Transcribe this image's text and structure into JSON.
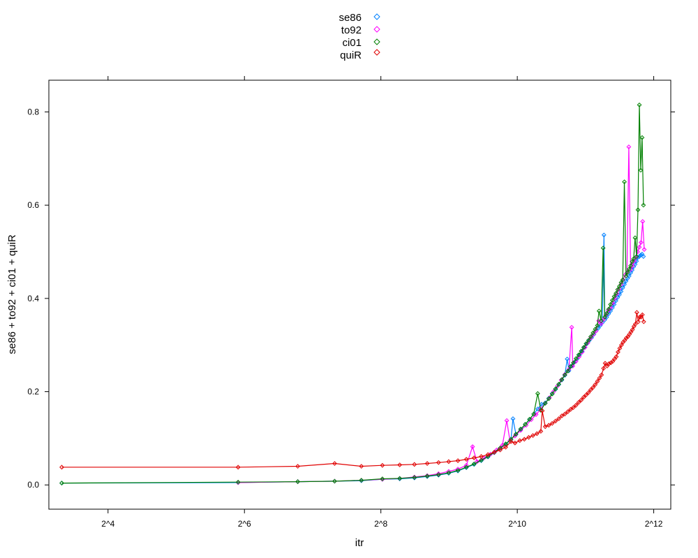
{
  "chart_data": {
    "type": "line",
    "xlabel": "itr",
    "ylabel": "se86 + to92 + ci01 + quiR",
    "x_scale": "log2",
    "xlim": [
      8.77,
      4871.0
    ],
    "ylim": [
      -0.052,
      0.868
    ],
    "x_ticks": [
      {
        "value": 16,
        "label": "2^4"
      },
      {
        "value": 64,
        "label": "2^6"
      },
      {
        "value": 256,
        "label": "2^8"
      },
      {
        "value": 1024,
        "label": "2^10"
      },
      {
        "value": 4096,
        "label": "2^12"
      }
    ],
    "y_ticks": [
      {
        "value": 0.0,
        "label": "0.0"
      },
      {
        "value": 0.2,
        "label": "0.2"
      },
      {
        "value": 0.4,
        "label": "0.4"
      },
      {
        "value": 0.6,
        "label": "0.6"
      },
      {
        "value": 0.8,
        "label": "0.8"
      }
    ],
    "legend_position": "top-center",
    "series": [
      {
        "name": "se86",
        "color": "#0080ff",
        "points": [
          [
            10,
            0.004
          ],
          [
            60,
            0.005
          ],
          [
            110,
            0.007
          ],
          [
            160,
            0.008
          ],
          [
            210,
            0.009
          ],
          [
            260,
            0.012
          ],
          [
            310,
            0.013
          ],
          [
            360,
            0.015
          ],
          [
            410,
            0.018
          ],
          [
            460,
            0.021
          ],
          [
            510,
            0.025
          ],
          [
            560,
            0.03
          ],
          [
            610,
            0.037
          ],
          [
            660,
            0.044
          ],
          [
            710,
            0.052
          ],
          [
            760,
            0.06
          ],
          [
            810,
            0.069
          ],
          [
            860,
            0.078
          ],
          [
            910,
            0.087
          ],
          [
            960,
            0.097
          ],
          [
            980,
            0.142
          ],
          [
            1010,
            0.108
          ],
          [
            1060,
            0.119
          ],
          [
            1110,
            0.13
          ],
          [
            1160,
            0.14
          ],
          [
            1210,
            0.152
          ],
          [
            1260,
            0.163
          ],
          [
            1310,
            0.173
          ],
          [
            1360,
            0.176
          ],
          [
            1410,
            0.186
          ],
          [
            1460,
            0.196
          ],
          [
            1510,
            0.205
          ],
          [
            1560,
            0.215
          ],
          [
            1610,
            0.225
          ],
          [
            1660,
            0.235
          ],
          [
            1700,
            0.27
          ],
          [
            1730,
            0.245
          ],
          [
            1780,
            0.255
          ],
          [
            1830,
            0.263
          ],
          [
            1880,
            0.27
          ],
          [
            1930,
            0.279
          ],
          [
            1980,
            0.287
          ],
          [
            2030,
            0.295
          ],
          [
            2080,
            0.303
          ],
          [
            2130,
            0.31
          ],
          [
            2180,
            0.316
          ],
          [
            2230,
            0.323
          ],
          [
            2280,
            0.33
          ],
          [
            2330,
            0.336
          ],
          [
            2380,
            0.342
          ],
          [
            2430,
            0.348
          ],
          [
            2470,
            0.536
          ],
          [
            2490,
            0.354
          ],
          [
            2540,
            0.36
          ],
          [
            2590,
            0.367
          ],
          [
            2640,
            0.373
          ],
          [
            2690,
            0.38
          ],
          [
            2740,
            0.387
          ],
          [
            2790,
            0.395
          ],
          [
            2840,
            0.402
          ],
          [
            2890,
            0.408
          ],
          [
            2940,
            0.415
          ],
          [
            2990,
            0.423
          ],
          [
            3040,
            0.43
          ],
          [
            3090,
            0.437
          ],
          [
            3140,
            0.443
          ],
          [
            3190,
            0.448
          ],
          [
            3240,
            0.455
          ],
          [
            3290,
            0.461
          ],
          [
            3340,
            0.468
          ],
          [
            3390,
            0.473
          ],
          [
            3440,
            0.48
          ],
          [
            3490,
            0.488
          ],
          [
            3540,
            0.49
          ],
          [
            3590,
            0.493
          ],
          [
            3640,
            0.495
          ],
          [
            3690,
            0.49
          ]
        ]
      },
      {
        "name": "to92",
        "color": "#ff00ff",
        "points": [
          [
            60,
            0.005
          ],
          [
            110,
            0.007
          ],
          [
            160,
            0.008
          ],
          [
            210,
            0.01
          ],
          [
            260,
            0.012
          ],
          [
            310,
            0.014
          ],
          [
            360,
            0.017
          ],
          [
            410,
            0.02
          ],
          [
            460,
            0.024
          ],
          [
            510,
            0.029
          ],
          [
            560,
            0.034
          ],
          [
            610,
            0.042
          ],
          [
            650,
            0.082
          ],
          [
            680,
            0.05
          ],
          [
            730,
            0.058
          ],
          [
            780,
            0.066
          ],
          [
            830,
            0.075
          ],
          [
            880,
            0.085
          ],
          [
            920,
            0.138
          ],
          [
            950,
            0.095
          ],
          [
            1000,
            0.105
          ],
          [
            1060,
            0.117
          ],
          [
            1120,
            0.128
          ],
          [
            1180,
            0.14
          ],
          [
            1240,
            0.151
          ],
          [
            1300,
            0.163
          ],
          [
            1360,
            0.175
          ],
          [
            1420,
            0.187
          ],
          [
            1480,
            0.2
          ],
          [
            1540,
            0.212
          ],
          [
            1600,
            0.225
          ],
          [
            1660,
            0.237
          ],
          [
            1730,
            0.248
          ],
          [
            1780,
            0.338
          ],
          [
            1800,
            0.255
          ],
          [
            1860,
            0.265
          ],
          [
            1920,
            0.275
          ],
          [
            1980,
            0.285
          ],
          [
            2040,
            0.295
          ],
          [
            2100,
            0.305
          ],
          [
            2160,
            0.315
          ],
          [
            2220,
            0.323
          ],
          [
            2280,
            0.33
          ],
          [
            2340,
            0.352
          ],
          [
            2400,
            0.346
          ],
          [
            2460,
            0.355
          ],
          [
            2520,
            0.365
          ],
          [
            2580,
            0.374
          ],
          [
            2640,
            0.38
          ],
          [
            2700,
            0.39
          ],
          [
            2760,
            0.4
          ],
          [
            2820,
            0.41
          ],
          [
            2880,
            0.42
          ],
          [
            2940,
            0.43
          ],
          [
            3000,
            0.44
          ],
          [
            3060,
            0.45
          ],
          [
            3120,
            0.455
          ],
          [
            3180,
            0.725
          ],
          [
            3240,
            0.462
          ],
          [
            3300,
            0.47
          ],
          [
            3360,
            0.48
          ],
          [
            3420,
            0.488
          ],
          [
            3480,
            0.5
          ],
          [
            3540,
            0.51
          ],
          [
            3600,
            0.52
          ],
          [
            3660,
            0.565
          ],
          [
            3720,
            0.505
          ]
        ]
      },
      {
        "name": "ci01",
        "color": "#008000",
        "points": [
          [
            10,
            0.004
          ],
          [
            60,
            0.006
          ],
          [
            110,
            0.007
          ],
          [
            160,
            0.008
          ],
          [
            210,
            0.01
          ],
          [
            260,
            0.013
          ],
          [
            310,
            0.014
          ],
          [
            360,
            0.016
          ],
          [
            410,
            0.019
          ],
          [
            460,
            0.022
          ],
          [
            510,
            0.026
          ],
          [
            560,
            0.031
          ],
          [
            610,
            0.038
          ],
          [
            660,
            0.045
          ],
          [
            710,
            0.053
          ],
          [
            760,
            0.061
          ],
          [
            810,
            0.07
          ],
          [
            860,
            0.079
          ],
          [
            910,
            0.088
          ],
          [
            960,
            0.098
          ],
          [
            1010,
            0.109
          ],
          [
            1060,
            0.12
          ],
          [
            1110,
            0.13
          ],
          [
            1160,
            0.141
          ],
          [
            1210,
            0.152
          ],
          [
            1260,
            0.196
          ],
          [
            1300,
            0.16
          ],
          [
            1360,
            0.175
          ],
          [
            1410,
            0.185
          ],
          [
            1460,
            0.195
          ],
          [
            1510,
            0.206
          ],
          [
            1560,
            0.216
          ],
          [
            1610,
            0.226
          ],
          [
            1660,
            0.236
          ],
          [
            1710,
            0.244
          ],
          [
            1760,
            0.254
          ],
          [
            1810,
            0.262
          ],
          [
            1860,
            0.271
          ],
          [
            1910,
            0.279
          ],
          [
            1960,
            0.287
          ],
          [
            2010,
            0.295
          ],
          [
            2060,
            0.303
          ],
          [
            2110,
            0.31
          ],
          [
            2160,
            0.318
          ],
          [
            2210,
            0.326
          ],
          [
            2260,
            0.334
          ],
          [
            2310,
            0.342
          ],
          [
            2350,
            0.373
          ],
          [
            2400,
            0.352
          ],
          [
            2450,
            0.508
          ],
          [
            2490,
            0.36
          ],
          [
            2540,
            0.368
          ],
          [
            2590,
            0.377
          ],
          [
            2640,
            0.387
          ],
          [
            2690,
            0.396
          ],
          [
            2740,
            0.404
          ],
          [
            2790,
            0.411
          ],
          [
            2840,
            0.419
          ],
          [
            2890,
            0.426
          ],
          [
            2940,
            0.434
          ],
          [
            2990,
            0.44
          ],
          [
            3040,
            0.65
          ],
          [
            3090,
            0.448
          ],
          [
            3140,
            0.456
          ],
          [
            3190,
            0.463
          ],
          [
            3240,
            0.47
          ],
          [
            3290,
            0.479
          ],
          [
            3340,
            0.485
          ],
          [
            3390,
            0.53
          ],
          [
            3440,
            0.49
          ],
          [
            3490,
            0.59
          ],
          [
            3540,
            0.815
          ],
          [
            3590,
            0.675
          ],
          [
            3640,
            0.745
          ],
          [
            3690,
            0.6
          ]
        ]
      },
      {
        "name": "quiR",
        "color": "#e00000",
        "points": [
          [
            10,
            0.038
          ],
          [
            60,
            0.038
          ],
          [
            110,
            0.04
          ],
          [
            160,
            0.046
          ],
          [
            210,
            0.04
          ],
          [
            260,
            0.042
          ],
          [
            310,
            0.043
          ],
          [
            360,
            0.044
          ],
          [
            410,
            0.046
          ],
          [
            460,
            0.048
          ],
          [
            510,
            0.05
          ],
          [
            560,
            0.052
          ],
          [
            610,
            0.055
          ],
          [
            660,
            0.058
          ],
          [
            710,
            0.061
          ],
          [
            760,
            0.065
          ],
          [
            810,
            0.07
          ],
          [
            860,
            0.075
          ],
          [
            910,
            0.081
          ],
          [
            960,
            0.093
          ],
          [
            1000,
            0.09
          ],
          [
            1050,
            0.095
          ],
          [
            1100,
            0.098
          ],
          [
            1150,
            0.102
          ],
          [
            1200,
            0.106
          ],
          [
            1250,
            0.11
          ],
          [
            1300,
            0.115
          ],
          [
            1320,
            0.159
          ],
          [
            1360,
            0.125
          ],
          [
            1410,
            0.128
          ],
          [
            1460,
            0.132
          ],
          [
            1510,
            0.137
          ],
          [
            1560,
            0.142
          ],
          [
            1610,
            0.148
          ],
          [
            1660,
            0.152
          ],
          [
            1710,
            0.157
          ],
          [
            1760,
            0.162
          ],
          [
            1810,
            0.166
          ],
          [
            1860,
            0.171
          ],
          [
            1910,
            0.177
          ],
          [
            1960,
            0.182
          ],
          [
            2010,
            0.188
          ],
          [
            2060,
            0.193
          ],
          [
            2110,
            0.198
          ],
          [
            2160,
            0.204
          ],
          [
            2210,
            0.209
          ],
          [
            2260,
            0.215
          ],
          [
            2310,
            0.222
          ],
          [
            2360,
            0.229
          ],
          [
            2410,
            0.236
          ],
          [
            2460,
            0.25
          ],
          [
            2500,
            0.261
          ],
          [
            2550,
            0.255
          ],
          [
            2600,
            0.26
          ],
          [
            2650,
            0.262
          ],
          [
            2700,
            0.265
          ],
          [
            2750,
            0.27
          ],
          [
            2800,
            0.275
          ],
          [
            2850,
            0.285
          ],
          [
            2900,
            0.293
          ],
          [
            2950,
            0.3
          ],
          [
            3000,
            0.306
          ],
          [
            3050,
            0.31
          ],
          [
            3100,
            0.315
          ],
          [
            3150,
            0.318
          ],
          [
            3200,
            0.323
          ],
          [
            3250,
            0.328
          ],
          [
            3300,
            0.333
          ],
          [
            3350,
            0.34
          ],
          [
            3400,
            0.345
          ],
          [
            3450,
            0.37
          ],
          [
            3500,
            0.35
          ],
          [
            3550,
            0.36
          ],
          [
            3600,
            0.36
          ],
          [
            3650,
            0.365
          ],
          [
            3700,
            0.35
          ]
        ]
      }
    ]
  }
}
